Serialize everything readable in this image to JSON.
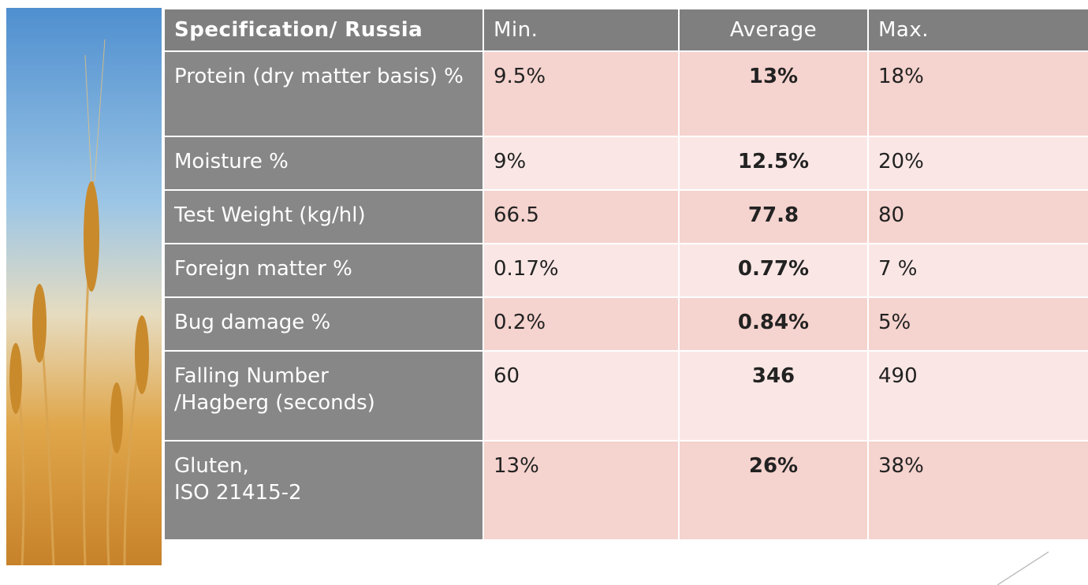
{
  "table": {
    "header": [
      "Specification/ Russia",
      "Min.",
      "Average",
      "Max."
    ],
    "rows": [
      [
        "Protein (dry matter basis) %",
        "9.5%",
        "13%",
        "18%"
      ],
      [
        "Moisture %",
        "9%",
        "12.5%",
        "20%"
      ],
      [
        "Test Weight (kg/hl)",
        "66.5",
        "77.8",
        "80"
      ],
      [
        "Foreign matter %",
        "0.17%",
        "0.77%",
        "7 %"
      ],
      [
        "Bug damage %",
        "0.2%",
        "0.84%",
        "5%"
      ],
      [
        "Falling Number\n/Hagberg (seconds)",
        "60",
        "346",
        "490"
      ],
      [
        "Gluten,\nISO 21415-2",
        "13%",
        "26%",
        "38%"
      ]
    ]
  }
}
